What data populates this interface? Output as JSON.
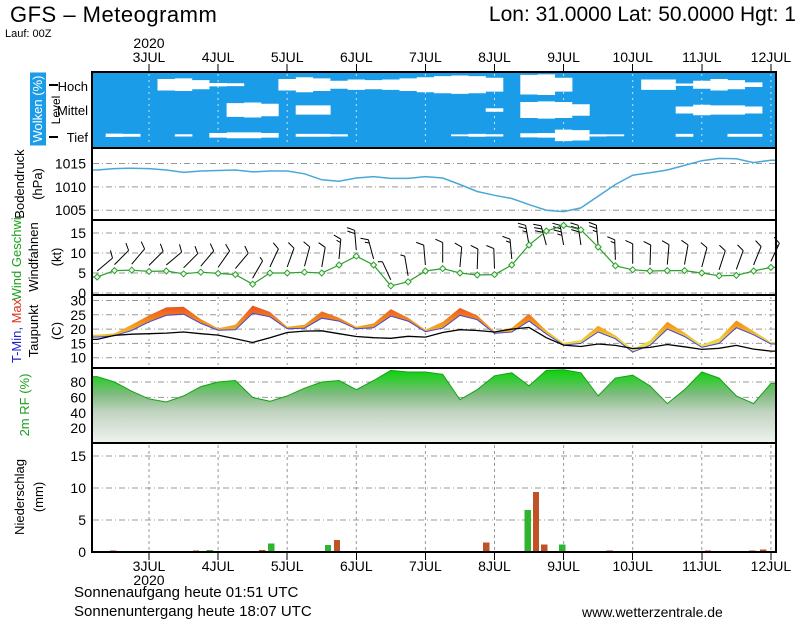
{
  "header": {
    "title": "GFS – Meteogramm",
    "coords": "Lon: 31.0000 Lat: 50.0000 Hgt: 1",
    "run": "Lauf: 00Z"
  },
  "footer": {
    "sunrise": "Sonnenaufgang heute 01:51 UTC",
    "sunset": "Sonnenuntergang heute 18:07 UTC",
    "site": "www.wetterzentrale.de"
  },
  "colors": {
    "cloud_bg": "#1a9ce8",
    "cloud_grid": "rgba(255,255,255,0.75)",
    "grid": "#999999",
    "pressure_line": "#4aa8d8",
    "wind_line": "#2ca02c",
    "temp_min_line": "#4646d8",
    "dewpoint_line": "#000000",
    "rf_line": "#18a018",
    "precip_green": "#2eb42e",
    "precip_red": "#c05326"
  },
  "chart_data": {
    "type": "meteogram",
    "time_axis": {
      "start_day": 2.25,
      "step_days": 0.25,
      "points": 40,
      "day_labels": [
        "3JUL",
        "4JUL",
        "5JUL",
        "6JUL",
        "7JUL",
        "8JUL",
        "9JUL",
        "10JUL",
        "11JUL",
        "12JUL"
      ],
      "year": "2020"
    },
    "panels": [
      {
        "id": "clouds",
        "label": "Wolken (%)",
        "axis_label": "Level",
        "rows": [
          "Hoch",
          "Mittel",
          "Tief"
        ],
        "series": {
          "hoch": [
            0,
            0,
            0,
            0,
            50,
            55,
            40,
            15,
            12,
            0,
            0,
            50,
            65,
            55,
            35,
            45,
            40,
            45,
            55,
            65,
            75,
            80,
            75,
            60,
            0,
            85,
            90,
            60,
            0,
            0,
            0,
            0,
            45,
            45,
            10,
            35,
            50,
            40,
            20,
            0
          ],
          "mittel": [
            0,
            0,
            0,
            0,
            0,
            0,
            0,
            0,
            60,
            65,
            55,
            0,
            40,
            40,
            0,
            0,
            0,
            0,
            0,
            0,
            0,
            0,
            0,
            15,
            0,
            70,
            75,
            70,
            50,
            0,
            0,
            0,
            0,
            0,
            30,
            45,
            40,
            40,
            30,
            0
          ],
          "tief": [
            0,
            15,
            12,
            0,
            0,
            10,
            0,
            20,
            25,
            25,
            20,
            0,
            12,
            12,
            10,
            0,
            0,
            0,
            0,
            0,
            0,
            8,
            12,
            10,
            0,
            18,
            20,
            50,
            45,
            10,
            8,
            0,
            0,
            0,
            12,
            0,
            0,
            12,
            12,
            0
          ]
        }
      },
      {
        "id": "pressure",
        "label": "Bodendruck",
        "unit": "(hPa)",
        "yticks": [
          1015,
          1010,
          1005
        ],
        "values": [
          1013.6,
          1013.9,
          1014.0,
          1013.9,
          1013.6,
          1013.1,
          1013.4,
          1013.5,
          1013.6,
          1013.2,
          1013.4,
          1013.4,
          1012.8,
          1011.5,
          1011.2,
          1011.9,
          1012.2,
          1011.8,
          1011.8,
          1012.2,
          1011.9,
          1010.5,
          1009.0,
          1008.2,
          1007.5,
          1006.2,
          1005.0,
          1004.7,
          1005.5,
          1008.0,
          1010.5,
          1012.5,
          1013.0,
          1013.6,
          1014.6,
          1015.6,
          1016.1,
          1016.0,
          1015.2,
          1015.7
        ]
      },
      {
        "id": "wind",
        "label": "Wind Geschwi.",
        "label2": "Windfahnen",
        "unit": "(kt)",
        "yticks": [
          15,
          10,
          5,
          0
        ],
        "speed": [
          4.0,
          5.6,
          5.7,
          5.4,
          5.5,
          4.8,
          5.2,
          4.9,
          4.6,
          2.2,
          5.0,
          5.0,
          5.2,
          5.0,
          7.0,
          9.2,
          7.0,
          1.8,
          2.8,
          5.5,
          6.1,
          5.0,
          4.5,
          4.6,
          7.0,
          12.0,
          15.5,
          16.9,
          15.8,
          11.5,
          6.8,
          5.8,
          5.5,
          5.6,
          5.6,
          5.0,
          4.3,
          4.4,
          5.5,
          6.4
        ],
        "barb_angles": [
          40,
          45,
          50,
          45,
          40,
          45,
          50,
          55,
          50,
          60,
          65,
          70,
          75,
          80,
          85,
          95,
          105,
          115,
          100,
          95,
          90,
          85,
          88,
          92,
          95,
          100,
          105,
          100,
          98,
          95,
          92,
          90,
          88,
          85,
          80,
          75,
          72,
          70,
          68,
          65
        ]
      },
      {
        "id": "temperature",
        "label_min": "T-Min,",
        "label_max": " Max",
        "label2": "Taupunkt",
        "unit": "(C)",
        "yticks": [
          30,
          25,
          20,
          15,
          10
        ],
        "tmax": [
          18.0,
          18.5,
          21.5,
          24.8,
          27.6,
          27.8,
          23.5,
          20.3,
          21.5,
          28.2,
          26.0,
          20.8,
          21.5,
          26.2,
          24.0,
          20.8,
          22.0,
          27.0,
          24.0,
          19.8,
          22.5,
          27.4,
          24.8,
          19.2,
          20.5,
          25.4,
          19.5,
          15.2,
          16.2,
          21.2,
          17.8,
          13.0,
          16.0,
          22.6,
          18.8,
          14.5,
          16.8,
          23.0,
          19.3,
          15.5
        ],
        "tmin": [
          17.2,
          17.7,
          19.5,
          22.5,
          24.8,
          25.2,
          22.0,
          19.6,
          19.8,
          25.5,
          24.3,
          20.1,
          20.3,
          23.8,
          22.8,
          20.1,
          20.5,
          24.5,
          22.8,
          19.1,
          20.3,
          24.8,
          23.3,
          18.5,
          19.0,
          22.8,
          18.3,
          14.4,
          15.0,
          19.0,
          16.6,
          12.0,
          14.3,
          20.0,
          17.4,
          13.6,
          15.0,
          20.5,
          18.0,
          14.8
        ],
        "dewpoint": [
          16.4,
          17.8,
          18.2,
          18.4,
          18.6,
          19.0,
          18.4,
          17.9,
          16.6,
          15.3,
          17.0,
          18.8,
          19.3,
          19.4,
          18.4,
          17.4,
          17.0,
          16.8,
          17.5,
          17.2,
          18.8,
          19.8,
          19.5,
          19.0,
          20.0,
          20.6,
          17.0,
          14.4,
          13.9,
          14.8,
          14.3,
          13.2,
          13.6,
          14.6,
          13.8,
          12.9,
          13.3,
          14.3,
          13.0,
          12.3
        ]
      },
      {
        "id": "humidity",
        "label": "2m RF (%)",
        "yticks": [
          80,
          60,
          40,
          20
        ],
        "values": [
          87,
          80,
          68,
          58,
          54,
          62,
          74,
          80,
          82,
          60,
          55,
          62,
          72,
          80,
          82,
          70,
          82,
          95,
          93,
          93,
          90,
          57,
          70,
          88,
          92,
          75,
          95,
          96,
          92,
          62,
          85,
          89,
          75,
          52,
          70,
          93,
          85,
          62,
          52,
          78
        ]
      },
      {
        "id": "precipitation",
        "label": "Niederschlag",
        "unit": "(mm)",
        "yticks": [
          15,
          10,
          5,
          0
        ],
        "bars": [
          {
            "t": 2.48,
            "mm": 0.2,
            "color": "red"
          },
          {
            "t": 3.68,
            "mm": 0.2,
            "color": "red"
          },
          {
            "t": 3.88,
            "mm": 0.35,
            "color": "green"
          },
          {
            "t": 4.64,
            "mm": 0.3,
            "color": "red"
          },
          {
            "t": 4.77,
            "mm": 1.3,
            "color": "green"
          },
          {
            "t": 5.59,
            "mm": 1.1,
            "color": "green"
          },
          {
            "t": 5.72,
            "mm": 1.9,
            "color": "red"
          },
          {
            "t": 7.88,
            "mm": 1.5,
            "color": "red"
          },
          {
            "t": 8.48,
            "mm": 6.6,
            "color": "green"
          },
          {
            "t": 8.6,
            "mm": 9.4,
            "color": "red"
          },
          {
            "t": 8.72,
            "mm": 1.2,
            "color": "red"
          },
          {
            "t": 8.98,
            "mm": 1.2,
            "color": "green"
          },
          {
            "t": 9.67,
            "mm": 0.25,
            "color": "red"
          },
          {
            "t": 11.09,
            "mm": 0.2,
            "color": "red"
          },
          {
            "t": 11.73,
            "mm": 0.2,
            "color": "red"
          },
          {
            "t": 11.89,
            "mm": 0.4,
            "color": "red"
          }
        ]
      }
    ]
  }
}
